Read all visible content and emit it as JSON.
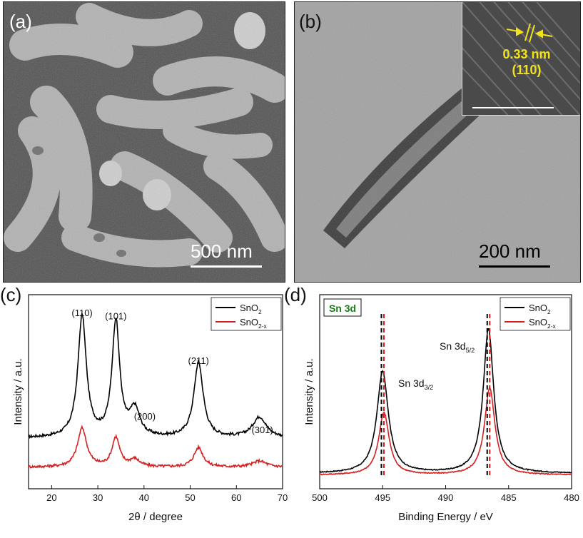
{
  "panels": {
    "a": {
      "label": "(a)",
      "scale_bar": "500 nm"
    },
    "b": {
      "label": "(b)",
      "scale_bar": "200 nm",
      "inset_spacing": "0.33 nm",
      "inset_plane": "(110)"
    },
    "c": {
      "label": "(c)"
    },
    "d": {
      "label": "(d)",
      "tag": "Sn 3d"
    }
  },
  "chart_data": [
    {
      "type": "line",
      "panel": "c",
      "xlabel": "2θ / degree",
      "ylabel": "Intensity / a.u.",
      "xlim": [
        15,
        70
      ],
      "xticks": [
        20,
        30,
        40,
        50,
        60,
        70
      ],
      "legend_position": "top-right",
      "series": [
        {
          "name": "SnO2",
          "legend_main": "SnO",
          "legend_sub": "2",
          "color": "#000000",
          "baseline": 0.3,
          "peaks": [
            {
              "x": 26.6,
              "h": 1.0,
              "w": 1.1
            },
            {
              "x": 33.9,
              "h": 0.95,
              "w": 1.0
            },
            {
              "x": 38.0,
              "h": 0.22,
              "w": 1.3
            },
            {
              "x": 51.8,
              "h": 0.62,
              "w": 1.2
            },
            {
              "x": 65.0,
              "h": 0.17,
              "w": 1.8
            }
          ]
        },
        {
          "name": "SnO2-x",
          "legend_main": "SnO",
          "legend_sub": "2-x",
          "color": "#d42020",
          "baseline": 0.06,
          "peaks": [
            {
              "x": 26.6,
              "h": 0.32,
              "w": 1.2
            },
            {
              "x": 33.9,
              "h": 0.24,
              "w": 1.0
            },
            {
              "x": 38.0,
              "h": 0.06,
              "w": 1.3
            },
            {
              "x": 51.8,
              "h": 0.16,
              "w": 1.2
            },
            {
              "x": 65.0,
              "h": 0.05,
              "w": 1.8
            }
          ]
        }
      ],
      "annotations": [
        {
          "text": "(110)",
          "x": 26.6
        },
        {
          "text": "(101)",
          "x": 33.9
        },
        {
          "text": "(200)",
          "x": 38.0
        },
        {
          "text": "(211)",
          "x": 51.8
        },
        {
          "text": "(301)",
          "x": 65.0
        }
      ]
    },
    {
      "type": "line",
      "panel": "d",
      "xlabel": "Binding Energy / eV",
      "ylabel": "Intensity / a.u.",
      "xlim": [
        500,
        480
      ],
      "xticks": [
        500,
        495,
        490,
        485,
        480
      ],
      "legend_position": "top-right",
      "series": [
        {
          "name": "SnO2",
          "legend_main": "SnO",
          "legend_sub": "2",
          "color": "#000000",
          "baseline": 0.05,
          "peaks": [
            {
              "x": 495.0,
              "h": 0.62,
              "w": 0.55
            },
            {
              "x": 486.6,
              "h": 0.88,
              "w": 0.5
            }
          ]
        },
        {
          "name": "SnO2-x",
          "legend_main": "SnO",
          "legend_sub": "2-x",
          "color": "#d42020",
          "baseline": 0.04,
          "peaks": [
            {
              "x": 494.9,
              "h": 0.38,
              "w": 0.5
            },
            {
              "x": 486.5,
              "h": 0.53,
              "w": 0.5
            }
          ]
        }
      ],
      "peak_labels": [
        {
          "main": "Sn 3d",
          "sub": "3/2"
        },
        {
          "main": "Sn 3d",
          "sub": "5/2"
        }
      ],
      "reference_lines": [
        495.1,
        494.9,
        486.7,
        486.5
      ]
    }
  ]
}
